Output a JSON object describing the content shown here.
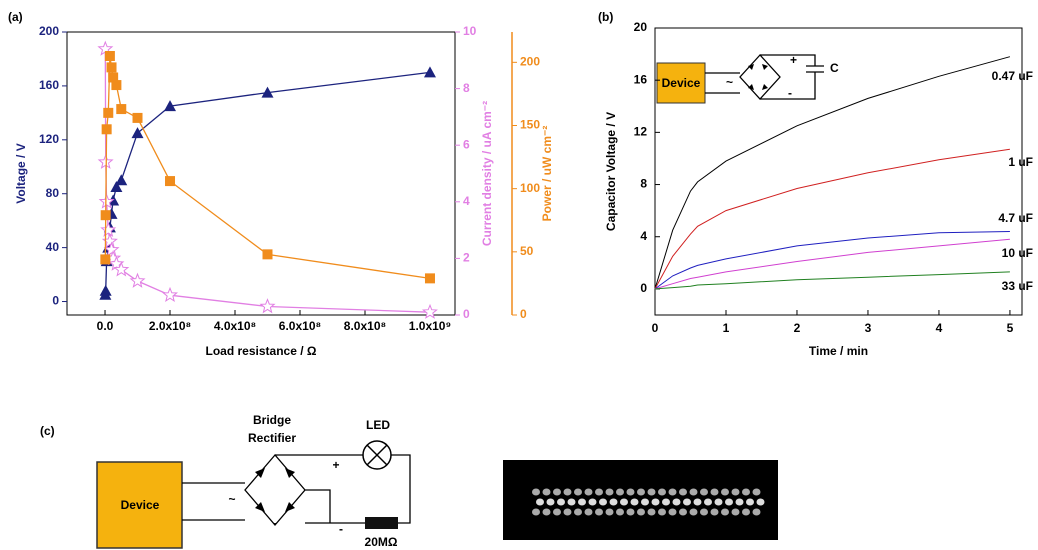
{
  "chart_data": [
    {
      "type": "scatter",
      "panel": "(a)",
      "x_label": "Load resistance / Ω",
      "y_label": "Voltage / V",
      "y2_label": "Current density / uA cm⁻²",
      "y3_label": "Power / uW cm⁻²",
      "x": [
        1000000,
        2000000,
        5000000,
        10000000,
        15000000,
        20000000,
        25000000,
        35000000,
        50000000,
        100000000,
        200000000,
        500000000,
        1000000000
      ],
      "xlim": [
        -117000000,
        1077000000
      ],
      "xticks": [
        {
          "value": 0,
          "label": "0.0"
        },
        {
          "value": 200000000,
          "label": "2.0x10⁸"
        },
        {
          "value": 400000000,
          "label": "4.0x10⁸"
        },
        {
          "value": 600000000,
          "label": "6.0x10⁸"
        },
        {
          "value": 800000000,
          "label": "8.0x10⁸"
        },
        {
          "value": 1000000000,
          "label": "1.0x10⁹"
        }
      ],
      "ylim": [
        -10,
        200
      ],
      "yticks": [
        0,
        40,
        80,
        120,
        160,
        200
      ],
      "y2lim": [
        0,
        10
      ],
      "y2ticks": [
        0,
        2,
        4,
        6,
        8,
        10
      ],
      "y3lim": [
        0,
        224
      ],
      "y3ticks": [
        0,
        50,
        100,
        150,
        200
      ],
      "series": [
        {
          "color": "#1c237e",
          "marker": "triangle",
          "axis": "y",
          "values": [
            5,
            8,
            30,
            40,
            55,
            65,
            75,
            85,
            90,
            125,
            145,
            155,
            170
          ]
        },
        {
          "color": "#e17fe3",
          "marker": "star",
          "axis": "y2",
          "values": [
            9.4,
            5.4,
            4.0,
            3.0,
            2.6,
            2.3,
            2.0,
            1.8,
            1.6,
            1.2,
            0.7,
            0.3,
            0.1
          ]
        },
        {
          "color": "#f08c1c",
          "marker": "square",
          "axis": "y3",
          "values": [
            44,
            79,
            147,
            160,
            205,
            196,
            188,
            182,
            163,
            156,
            106,
            48,
            29
          ]
        }
      ]
    },
    {
      "type": "line",
      "panel": "(b)",
      "x_label": "Time / min",
      "y_label": "Capacitor Voltage / V",
      "x": [
        0,
        0.25,
        0.5,
        0.6,
        1,
        2,
        3,
        4,
        5
      ],
      "xlim": [
        0,
        5.17
      ],
      "xticks": [
        0,
        1,
        2,
        3,
        4,
        5
      ],
      "ylim": [
        -2,
        20
      ],
      "yticks": [
        0,
        4,
        8,
        12,
        16,
        20
      ],
      "series": [
        {
          "name": "0.47 uF",
          "color": "#000000",
          "values": [
            0,
            4.5,
            7.5,
            8.2,
            9.8,
            12.5,
            14.6,
            16.3,
            17.8
          ]
        },
        {
          "name": "1 uF",
          "color": "#d02020",
          "values": [
            0,
            2.5,
            4.2,
            4.8,
            6.0,
            7.7,
            8.9,
            9.9,
            10.7
          ]
        },
        {
          "name": "4.7 uF",
          "color": "#2020c0",
          "values": [
            0,
            1.0,
            1.6,
            1.8,
            2.3,
            3.3,
            3.9,
            4.3,
            4.4
          ]
        },
        {
          "name": "10 uF",
          "color": "#d040d0",
          "values": [
            0,
            0.4,
            0.8,
            0.9,
            1.3,
            2.1,
            2.8,
            3.3,
            3.8
          ]
        },
        {
          "name": "33 uF",
          "color": "#208020",
          "values": [
            0,
            0.1,
            0.2,
            0.3,
            0.4,
            0.7,
            0.9,
            1.1,
            1.3
          ]
        }
      ],
      "inset": {
        "device": "Device",
        "plus": "+",
        "minus": "-",
        "ac": "~",
        "capacitor": "C"
      }
    }
  ],
  "panel_c": {
    "label": "(c)",
    "rectifier_lines": [
      "Bridge",
      "Rectifier"
    ],
    "led": "LED",
    "plus": "+",
    "minus": "-",
    "ac": "~",
    "device": "Device",
    "resistor": "20MΩ"
  }
}
